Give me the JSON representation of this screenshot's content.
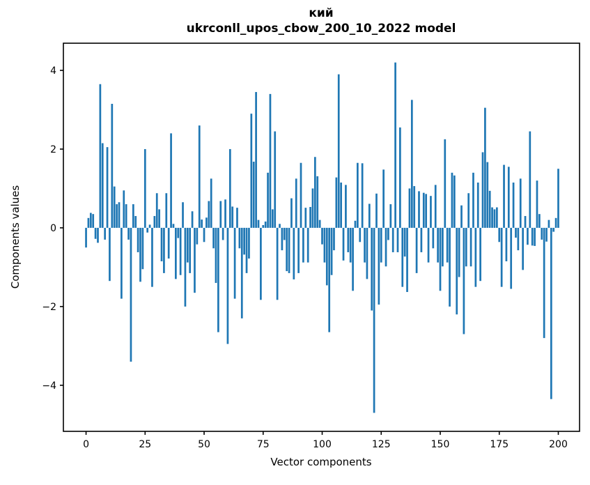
{
  "figure": {
    "background": "#ffffff",
    "title_line1": "кий",
    "title_line2": "ukrconll_upos_cbow_200_10_2022 model"
  },
  "chart_data": {
    "type": "bar",
    "title": "кий\nukrconll_upos_cbow_200_10_2022 model",
    "xlabel": "Vector components",
    "ylabel": "Components values",
    "bar_color": "#1f77b4",
    "spine_color": "#000000",
    "grid": false,
    "legend": null,
    "xlim": [
      -9.6,
      209.0
    ],
    "ylim": [
      -5.17,
      4.69
    ],
    "xticks": [
      0,
      25,
      50,
      75,
      100,
      125,
      150,
      175,
      200
    ],
    "xtick_labels": [
      "0",
      "25",
      "50",
      "75",
      "100",
      "125",
      "150",
      "175",
      "200"
    ],
    "yticks": [
      4,
      2,
      0,
      -2,
      -4
    ],
    "ytick_labels": [
      "4",
      "2",
      "0",
      "−2",
      "−4"
    ],
    "x_start": 0,
    "bar_width_units": 0.8,
    "values": [
      -0.5,
      0.25,
      0.38,
      0.35,
      -0.28,
      -0.38,
      3.65,
      2.15,
      -0.3,
      2.05,
      -1.35,
      3.15,
      1.05,
      0.6,
      0.65,
      -1.8,
      0.95,
      0.6,
      -0.3,
      -3.4,
      0.6,
      0.3,
      -0.62,
      -1.37,
      -1.05,
      2.0,
      -0.12,
      0.08,
      -1.5,
      0.3,
      0.88,
      0.47,
      -0.85,
      -1.15,
      0.88,
      -0.78,
      2.4,
      0.1,
      -1.3,
      -0.26,
      -1.2,
      0.65,
      -2.0,
      -0.88,
      -1.15,
      0.42,
      -1.65,
      -0.42,
      2.6,
      0.21,
      -0.36,
      0.26,
      0.68,
      1.25,
      -0.52,
      -1.4,
      -2.65,
      0.68,
      -0.31,
      0.72,
      -2.95,
      2.0,
      0.54,
      -1.8,
      0.51,
      -0.52,
      -2.3,
      -0.68,
      -1.15,
      -0.78,
      2.9,
      1.68,
      3.45,
      0.2,
      -1.83,
      0.07,
      0.16,
      1.4,
      3.4,
      0.47,
      2.45,
      -1.83,
      0.1,
      -0.57,
      -0.31,
      -1.1,
      -1.15,
      0.75,
      -1.31,
      1.25,
      -1.15,
      1.65,
      -0.88,
      0.51,
      -0.88,
      0.53,
      1.0,
      1.8,
      1.31,
      0.2,
      -0.42,
      -0.88,
      -1.46,
      -2.65,
      -1.2,
      -0.57,
      1.28,
      3.9,
      1.15,
      -0.83,
      1.09,
      -0.62,
      -0.88,
      -1.6,
      0.18,
      1.65,
      -0.36,
      1.64,
      -0.88,
      -1.3,
      0.61,
      -2.1,
      -4.7,
      0.87,
      -1.95,
      -0.88,
      1.48,
      -0.98,
      -0.31,
      0.6,
      -0.62,
      4.2,
      -0.62,
      2.55,
      -1.5,
      -0.73,
      -1.63,
      1.0,
      3.25,
      1.06,
      -1.15,
      0.93,
      -0.62,
      0.89,
      0.86,
      -0.88,
      0.81,
      -0.52,
      1.09,
      -0.88,
      -1.6,
      -0.98,
      2.25,
      -0.88,
      -2.0,
      1.4,
      1.33,
      -2.2,
      -1.25,
      0.57,
      -2.7,
      -0.98,
      0.88,
      -0.98,
      1.4,
      -1.5,
      1.15,
      -1.35,
      1.92,
      3.05,
      1.67,
      0.94,
      0.52,
      0.47,
      0.52,
      -0.36,
      -1.5,
      1.6,
      -0.85,
      1.55,
      -1.55,
      1.15,
      -0.25,
      -0.57,
      1.25,
      -1.07,
      0.3,
      -0.43,
      2.45,
      -0.45,
      -0.46,
      1.2,
      0.35,
      -0.3,
      -2.8,
      -0.35,
      0.2,
      -4.35,
      -0.1,
      0.25,
      1.5
    ]
  }
}
